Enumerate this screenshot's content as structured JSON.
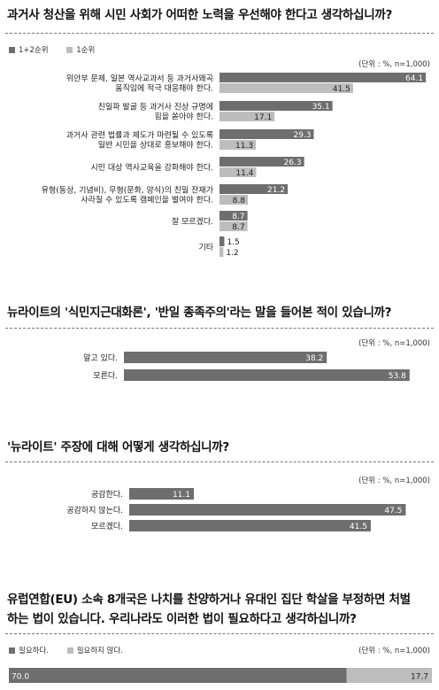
{
  "colors": {
    "primary": "#6e6e6e",
    "secondary": "#bdbdbd",
    "value_on_dark": "#ffffff",
    "value_on_light": "#222222"
  },
  "chart_data": [
    {
      "type": "bar",
      "orientation": "horizontal",
      "title": "과거사 청산을 위해 시민 사회가 어떠한 노력을 우선해야 한다고 생각하십니까?",
      "unit_note": "(단위 : %, n=1,000)",
      "legend": [
        "1+2순위",
        "1순위"
      ],
      "xlim": [
        0,
        66
      ],
      "categories": [
        [
          "위안부 문제, 일본 역사교과서 등 과거사왜곡",
          "움직임에 적극 대응해야 한다."
        ],
        [
          "친일파 발굴 등 과거사 진상 규명에",
          "힘을 쏟아야 한다."
        ],
        [
          "과거사 관련 법률과 제도가 마련될 수 있도록",
          "일반 시민을 상대로 홍보해야 한다."
        ],
        [
          "시민 대상 역사교육을 강화해야 한다."
        ],
        [
          "유형(동상, 기념비), 무형(문화, 양식)의 친일 잔재가",
          "사라질 수 있도록 캠페인을 벌여야 한다."
        ],
        [
          "잘 모르겠다."
        ],
        [
          "기타"
        ]
      ],
      "series": [
        {
          "name": "1+2순위",
          "values": [
            64.1,
            35.1,
            29.3,
            26.3,
            21.2,
            8.7,
            1.5
          ],
          "labels": [
            "64.1",
            "35.1",
            "29.3",
            "26.3",
            "21.2",
            "8.7",
            "1.5"
          ]
        },
        {
          "name": "1순위",
          "values": [
            41.5,
            17.1,
            11.3,
            11.4,
            8.8,
            8.7,
            1.2
          ],
          "labels": [
            "41.5",
            "17.1",
            "11.3",
            "11.4",
            "8.8",
            "8.7",
            "1.2"
          ]
        }
      ]
    },
    {
      "type": "bar",
      "orientation": "horizontal",
      "title": "뉴라이트의 '식민지근대화론', '반일 종족주의'라는 말을 들어본 적이 있습니까?",
      "unit_note": "(단위 : %, n=1,000)",
      "xlim": [
        0,
        58
      ],
      "categories": [
        "알고 있다.",
        "모른다."
      ],
      "values": [
        38.2,
        53.8
      ],
      "labels": [
        "38.2",
        "53.8"
      ]
    },
    {
      "type": "bar",
      "orientation": "horizontal",
      "title": "'뉴라이트' 주장에 대해 어떻게 생각하십니까?",
      "unit_note": "(단위 : %, n=1,000)",
      "xlim": [
        0,
        52
      ],
      "categories": [
        "공감한다.",
        "공감하지 않는다.",
        "모르겠다."
      ],
      "values": [
        11.1,
        47.5,
        41.5
      ],
      "labels": [
        "11.1",
        "47.5",
        "41.5"
      ]
    },
    {
      "type": "bar",
      "orientation": "stacked-horizontal",
      "title": [
        "유럽연합(EU) 소속 8개국은 나치를 찬양하거나 유대인 집단 학살을 부정하면 처벌",
        "하는 법이 있습니다. 우리나라도 이러한 법이 필요하다고 생각하십니까?"
      ],
      "unit_note": "(단위 : %, n=1,000)",
      "legend": [
        "필요하다.",
        "필요하지 않다."
      ],
      "categories": [
        "필요하다.",
        "필요하지 않다."
      ],
      "values": [
        70.0,
        17.7
      ],
      "labels": [
        "70.0",
        "17.7"
      ]
    }
  ]
}
